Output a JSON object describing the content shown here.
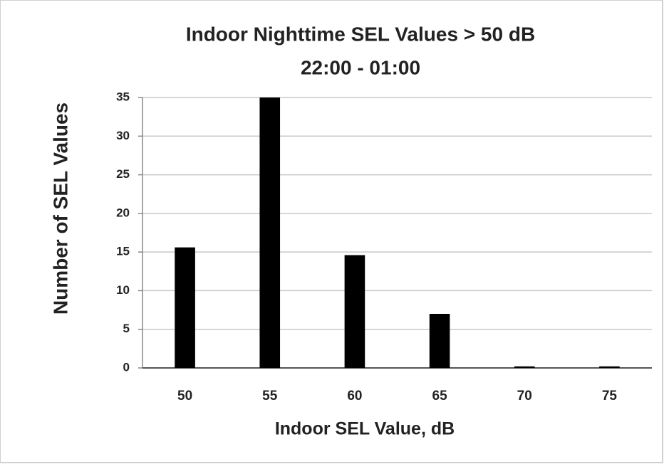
{
  "chart_data": {
    "type": "bar",
    "title": "Indoor Nighttime SEL Values > 50 dB",
    "subtitle": "22:00 - 01:00",
    "x_label": "Indoor SEL Value, dB",
    "y_label": "Number of SEL Values",
    "categories": [
      "50",
      "55",
      "60",
      "65",
      "70",
      "75"
    ],
    "values": [
      15.6,
      35,
      14.6,
      7,
      0.2,
      0.2
    ],
    "color": "#000000",
    "ylim": [
      0,
      35
    ],
    "yticks": [
      0,
      5,
      10,
      15,
      20,
      25,
      30,
      35
    ],
    "grid": true
  }
}
